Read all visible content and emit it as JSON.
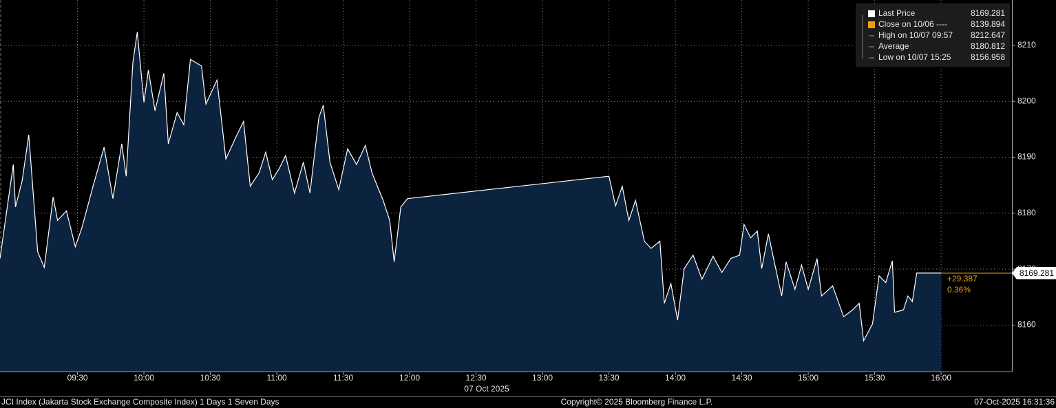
{
  "chart_data": {
    "type": "area",
    "series": [
      {
        "name": "Last Price",
        "color": "#ffffff",
        "fill": "#0c2340",
        "values": [
          8171.9,
          8188.7,
          8181.1,
          8185.8,
          8194.0,
          8173.1,
          8170.3,
          8182.9,
          8178.7,
          8180.4,
          8174.0,
          8177.4,
          8184.8,
          8191.8,
          8182.6,
          8192.4,
          8186.6,
          8206.9,
          8212.4,
          8199.8,
          8205.6,
          8198.3,
          8205.0,
          8192.4,
          8198.0,
          8195.8,
          8207.5,
          8206.3,
          8199.5,
          8203.8,
          8189.7,
          8194.0,
          8196.4,
          8184.8,
          8187.2,
          8190.9,
          8186.0,
          8187.9,
          8190.3,
          8183.6,
          8189.1,
          8183.6,
          8197.1,
          8199.3,
          8189.1,
          8184.2,
          8191.5,
          8188.7,
          8192.1,
          8187.2,
          8182.3,
          8178.7,
          8171.3,
          8181.1,
          8182.6,
          8186.6,
          8181.3,
          8184.8,
          8178.7,
          8182.3,
          8175.0,
          8173.7,
          8175.0,
          8163.9,
          8167.4,
          8160.9,
          8170.1,
          8172.5,
          8168.2,
          8172.3,
          8169.4,
          8171.9,
          8172.5,
          8178.0,
          8175.6,
          8176.8,
          8170.1,
          8176.3,
          8170.7,
          8165.2,
          8171.3,
          8166.4,
          8170.7,
          8166.4,
          8171.9,
          8165.2,
          8167.0,
          8161.5,
          8162.7,
          8163.9,
          8157.2,
          8160.2,
          8168.8,
          8167.6,
          8171.5,
          8162.3,
          8162.7,
          8165.2,
          8164.2,
          8169.3,
          8169.3
        ]
      }
    ],
    "x": [
      "08:55",
      "09:01",
      "09:02",
      "09:05",
      "09:08",
      "09:12",
      "09:15",
      "09:19",
      "09:21",
      "09:25",
      "09:29",
      "09:32",
      "09:37",
      "09:42",
      "09:46",
      "09:50",
      "09:52",
      "09:55",
      "09:57",
      "10:00",
      "10:02",
      "10:05",
      "10:09",
      "10:11",
      "10:15",
      "10:18",
      "10:21",
      "10:26",
      "10:28",
      "10:33",
      "10:37",
      "10:42",
      "10:45",
      "10:48",
      "10:52",
      "10:55",
      "10:58",
      "11:01",
      "11:04",
      "11:08",
      "11:12",
      "11:15",
      "11:19",
      "11:21",
      "11:24",
      "11:28",
      "11:32",
      "11:36",
      "11:40",
      "11:43",
      "11:48",
      "11:51",
      "11:53",
      "11:56",
      "11:59",
      "13:30",
      "13:33",
      "13:36",
      "13:39",
      "13:42",
      "13:46",
      "13:49",
      "13:53",
      "13:55",
      "13:58",
      "14:01",
      "14:04",
      "14:08",
      "14:12",
      "14:17",
      "14:21",
      "14:25",
      "14:29",
      "14:31",
      "14:34",
      "14:37",
      "14:39",
      "14:42",
      "14:45",
      "14:48",
      "14:50",
      "14:54",
      "14:57",
      "15:00",
      "15:04",
      "15:06",
      "15:11",
      "15:16",
      "15:20",
      "15:23",
      "15:25",
      "15:29",
      "15:32",
      "15:35",
      "15:38",
      "15:39",
      "15:43",
      "15:45",
      "15:47",
      "15:49",
      "16:00"
    ],
    "xlim": [
      "08:55",
      "16:32"
    ],
    "xticks": [
      "09:30",
      "10:00",
      "10:30",
      "11:00",
      "11:30",
      "12:00",
      "12:30",
      "13:00",
      "13:30",
      "14:00",
      "14:30",
      "15:00",
      "15:30",
      "16:00"
    ],
    "ylim": [
      8151.7,
      8218.1
    ],
    "yticks": [
      8160,
      8170,
      8180,
      8190,
      8200,
      8210
    ],
    "grid": true,
    "date_label": "07 Oct 2025",
    "extension_color": "#f39c12",
    "legend": [
      {
        "label": "Last Price",
        "value": 8169.281,
        "color": "#ffffff"
      },
      {
        "label": "Close on 10/06 ----",
        "value": 8139.894,
        "color": "#f39c12"
      },
      {
        "label": "High on 10/07 09:57",
        "value": 8212.647
      },
      {
        "label": "Average",
        "value": 8180.812
      },
      {
        "label": "Low on 10/07 15:25",
        "value": 8156.958
      }
    ],
    "annotations": [
      {
        "value": 29.387,
        "label": "+29.387"
      },
      {
        "value": 0.36,
        "label": "0.36%"
      }
    ],
    "footer": {
      "left": "JCI Index (Jakarta Stock Exchange Composite Index) 1 Days 1 Seven Days",
      "center": "Copyright© 2025 Bloomberg Finance L.P.",
      "right": "07-Oct-2025 16:31:36"
    }
  }
}
